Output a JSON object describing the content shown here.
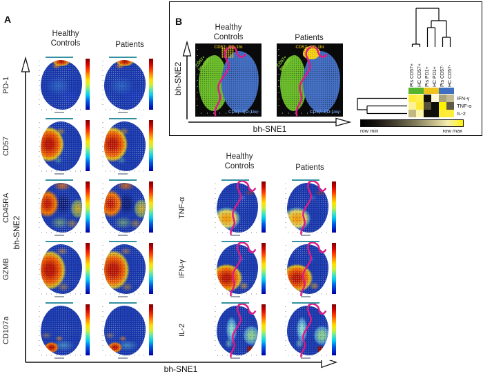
{
  "panel_a": {
    "label": "A",
    "col_headers": [
      "Healthy Controls",
      "Patients"
    ],
    "x_axis_label": "bh-SNE1",
    "y_axis_label": "bh-SNE2",
    "rows": [
      {
        "label": "PD-1",
        "pattern": "pd1"
      },
      {
        "label": "CD57",
        "pattern": "cd57"
      },
      {
        "label": "CD45RA",
        "pattern": "cd45ra"
      },
      {
        "label": "GZMB",
        "pattern": "gzmb"
      },
      {
        "label": "CD107a",
        "pattern": "cd107a"
      }
    ]
  },
  "panel_b": {
    "label": "B",
    "col_headers": [
      "Healthy Controls",
      "Patients"
    ],
    "x_axis_label": "bh-SNE1",
    "y_axis_label": "bh-SNE2",
    "region_labels": {
      "green": "CD57+ PD-1lo/-",
      "yellow": "CD57- PD-1hi",
      "blue": "CD57- PD-1lo/-"
    },
    "plots": [
      {
        "condition": "Healthy Controls",
        "yellow_cluster": "sparse"
      },
      {
        "condition": "Patients",
        "yellow_cluster": "dense"
      }
    ]
  },
  "panel_c": {
    "col_headers": [
      "Healthy Controls",
      "Patients"
    ],
    "rows": [
      {
        "label": "TNF-α",
        "pattern": "tnfa"
      },
      {
        "label": "IFN-γ",
        "pattern": "ifng"
      },
      {
        "label": "IL-2",
        "pattern": "il2"
      }
    ]
  },
  "chart_data": {
    "type": "heatmap",
    "title": "",
    "columns": [
      "Pts CD57+",
      "HC CD57+",
      "Pts PD1+",
      "HC PD1+",
      "Pts CD57-",
      "HC CD57-"
    ],
    "rows": [
      "IFN-γ",
      "TNF-α",
      "IL-2"
    ],
    "values_row_relative": [
      [
        1.0,
        1.0,
        0.0,
        0.85,
        0.45,
        0.55
      ],
      [
        0.8,
        1.0,
        0.25,
        0.0,
        1.0,
        0.3
      ],
      [
        0.5,
        0.8,
        0.0,
        0.0,
        1.0,
        1.0
      ]
    ],
    "cell_colors": [
      [
        "#fdec3c",
        "#fdf04e",
        "#101008",
        "#fdf8d8",
        "#a8a27c",
        "#c2bb94"
      ],
      [
        "#fcf295",
        "#fdeb3a",
        "#55503a",
        "#0e0e08",
        "#fff200",
        "#5f5a48"
      ],
      [
        "#c2b982",
        "#fcf5ad",
        "#101008",
        "#101008",
        "#fdeb33",
        "#fdec3c"
      ]
    ],
    "column_group_colors": [
      "#56b32d",
      "#56b32d",
      "#eec31e",
      "#eec31e",
      "#3e6fc1",
      "#3e6fc1"
    ],
    "column_dendrogram": "((Pts CD57+, HC CD57+), ((Pts PD1+, HC PD1+), (Pts CD57-, HC CD57-)))",
    "row_dendrogram": "(IFN-γ, (TNF-α, IL-2))",
    "legend": {
      "min_label": "row min",
      "max_label": "row max"
    },
    "colormap": "black-to-yellow (row relative)"
  }
}
